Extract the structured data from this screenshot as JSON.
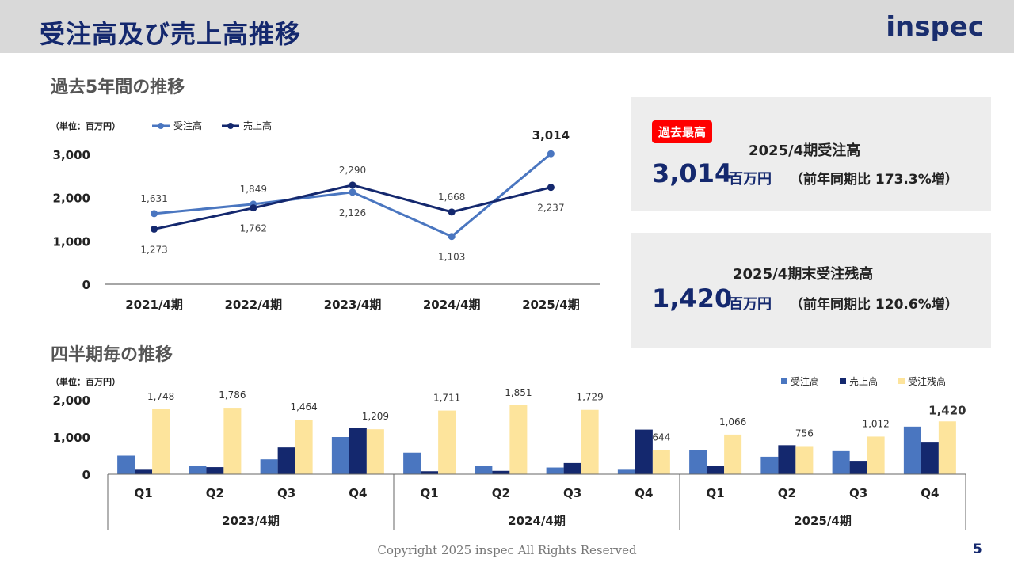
{
  "header": {
    "title": "受注高及び売上高推移",
    "logo_text": "inspec"
  },
  "sections": {
    "annual_title": "過去5年間の推移",
    "quarterly_title": "四半期毎の推移"
  },
  "highlight_boxes": [
    {
      "badge": "過去最高",
      "label": "2025/4期受注高",
      "value": "3,014",
      "unit": "百万円",
      "yoy": "（前年同期比  173.3%増）"
    },
    {
      "label": "2025/4期末受注残高",
      "value": "1,420",
      "unit": "百万円",
      "yoy": "（前年同期比  120.6%増）"
    }
  ],
  "chart_data": [
    {
      "type": "line",
      "unit_label": "（単位：百万円）",
      "categories": [
        "2021/4期",
        "2022/4期",
        "2023/4期",
        "2024/4期",
        "2025/4期"
      ],
      "series": [
        {
          "name": "受注高",
          "values": [
            1631,
            1849,
            2126,
            1103,
            3014
          ],
          "labels": [
            "1,631",
            "1,849",
            "2,126",
            "1,103",
            "3,014"
          ],
          "color": "#4a76c0"
        },
        {
          "name": "売上高",
          "values": [
            1273,
            1762,
            2290,
            1668,
            2237
          ],
          "labels": [
            "1,273",
            "1,762",
            "2,290",
            "1,668",
            "2,237"
          ],
          "color": "#14286e"
        }
      ],
      "ylim": [
        0,
        3000
      ],
      "yticks": [
        0,
        1000,
        2000,
        3000
      ],
      "ytick_labels": [
        "0",
        "1,000",
        "2,000",
        "3,000"
      ],
      "legend_position": "top-left",
      "grid": false
    },
    {
      "type": "bar",
      "unit_label": "（単位：百万円）",
      "groups": [
        {
          "label": "2023/4期",
          "quarters": [
            "Q1",
            "Q2",
            "Q3",
            "Q4"
          ]
        },
        {
          "label": "2024/4期",
          "quarters": [
            "Q1",
            "Q2",
            "Q3",
            "Q4"
          ]
        },
        {
          "label": "2025/4期",
          "quarters": [
            "Q1",
            "Q2",
            "Q3",
            "Q4"
          ]
        }
      ],
      "series": [
        {
          "name": "受注高",
          "color": "#4a76c0",
          "values": [
            500,
            230,
            400,
            1000,
            580,
            220,
            180,
            120,
            650,
            470,
            620,
            1280
          ]
        },
        {
          "name": "売上高",
          "color": "#14286e",
          "values": [
            120,
            190,
            720,
            1250,
            80,
            90,
            300,
            1200,
            230,
            780,
            360,
            870
          ]
        },
        {
          "name": "受注残高",
          "color": "#fde49c",
          "values": [
            1748,
            1786,
            1464,
            1209,
            1711,
            1851,
            1729,
            644,
            1066,
            756,
            1012,
            1420
          ],
          "labels": [
            "1,748",
            "1,786",
            "1,464",
            "1,209",
            "1,711",
            "1,851",
            "1,729",
            "644",
            "1,066",
            "756",
            "1,012",
            "1,420"
          ]
        }
      ],
      "ylim": [
        0,
        2000
      ],
      "yticks": [
        0,
        1000,
        2000
      ],
      "ytick_labels": [
        "0",
        "1,000",
        "2,000"
      ],
      "legend_position": "top-right",
      "grid": false
    }
  ],
  "footer": {
    "copyright": "Copyright 2025 inspec All Rights Reserved",
    "page_number": "5"
  }
}
